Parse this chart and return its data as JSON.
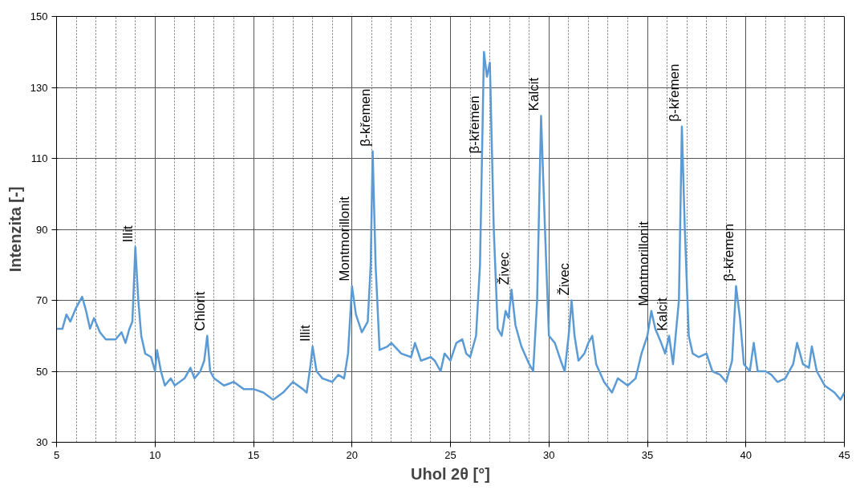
{
  "chart_data": {
    "type": "line",
    "xlabel": "Uhol 2θ [°]",
    "ylabel": "Intenzita [-]",
    "xlim": [
      5,
      45
    ],
    "ylim": [
      30,
      150
    ],
    "xticks": [
      5,
      {
        "value": 6,
        "label": null
      },
      {
        "value": 7,
        "label": null
      },
      {
        "value": 8,
        "label": null
      },
      {
        "value": 9,
        "label": null
      },
      10,
      {
        "value": 11,
        "label": null
      },
      {
        "value": 12,
        "label": null
      },
      {
        "value": 13,
        "label": null
      },
      {
        "value": 14,
        "label": null
      },
      15,
      {
        "value": 16,
        "label": null
      },
      {
        "value": 17,
        "label": null
      },
      {
        "value": 18,
        "label": null
      },
      {
        "value": 19,
        "label": null
      },
      20,
      {
        "value": 21,
        "label": null
      },
      {
        "value": 22,
        "label": null
      },
      {
        "value": 23,
        "label": null
      },
      {
        "value": 24,
        "label": null
      },
      25,
      {
        "value": 26,
        "label": null
      },
      {
        "value": 27,
        "label": null
      },
      {
        "value": 28,
        "label": null
      },
      {
        "value": 29,
        "label": null
      },
      30,
      {
        "value": 31,
        "label": null
      },
      {
        "value": 32,
        "label": null
      },
      {
        "value": 33,
        "label": null
      },
      {
        "value": 34,
        "label": null
      },
      35,
      {
        "value": 36,
        "label": null
      },
      {
        "value": 37,
        "label": null
      },
      {
        "value": 38,
        "label": null
      },
      {
        "value": 39,
        "label": null
      },
      40,
      {
        "value": 41,
        "label": null
      },
      {
        "value": 42,
        "label": null
      },
      {
        "value": 43,
        "label": null
      },
      {
        "value": 44,
        "label": null
      },
      45
    ],
    "yticks": [
      30,
      50,
      70,
      90,
      110,
      130,
      150
    ],
    "grid": true,
    "marker": "none",
    "line_style": "solid",
    "series": [
      {
        "color": "#5b9bd5",
        "x": [
          5,
          5.3,
          5.5,
          5.7,
          6.0,
          6.3,
          6.5,
          6.7,
          6.9,
          7.2,
          7.5,
          8.0,
          8.3,
          8.5,
          8.7,
          8.85,
          9.0,
          9.15,
          9.3,
          9.5,
          9.8,
          10.0,
          10.1,
          10.3,
          10.5,
          10.8,
          11.0,
          11.5,
          11.8,
          12.0,
          12.3,
          12.5,
          12.65,
          12.8,
          13.0,
          13.5,
          14,
          14.5,
          15,
          15.5,
          16,
          16.5,
          17,
          17.5,
          17.7,
          17.9,
          18.0,
          18.2,
          18.5,
          19,
          19.3,
          19.6,
          19.8,
          20.0,
          20.2,
          20.5,
          20.8,
          20.95,
          21.05,
          21.2,
          21.4,
          21.8,
          22,
          22.5,
          23.0,
          23.2,
          23.5,
          24,
          24.2,
          24.5,
          24.7,
          25,
          25.3,
          25.6,
          25.8,
          26.0,
          26.3,
          26.5,
          26.7,
          26.85,
          27.0,
          27.2,
          27.4,
          27.6,
          27.8,
          27.95,
          28.1,
          28.3,
          28.6,
          29.0,
          29.2,
          29.4,
          29.6,
          29.8,
          30.0,
          30.3,
          30.6,
          30.8,
          31.0,
          31.15,
          31.3,
          31.5,
          31.8,
          32.0,
          32.2,
          32.4,
          32.8,
          33.2,
          33.5,
          34.0,
          34.4,
          34.7,
          35.0,
          35.2,
          35.4,
          35.7,
          35.9,
          36.1,
          36.3,
          36.6,
          36.75,
          36.9,
          37.1,
          37.3,
          37.6,
          38.0,
          38.3,
          38.7,
          39.0,
          39.3,
          39.5,
          39.7,
          39.9,
          40.2,
          40.4,
          40.6,
          41.0,
          41.3,
          41.6,
          42.0,
          42.4,
          42.6,
          42.9,
          43.2,
          43.35,
          43.6,
          44.0,
          44.5,
          44.8,
          45
        ],
        "values": [
          62,
          62,
          66,
          64,
          68,
          71,
          67,
          62,
          65,
          61,
          59,
          59,
          61,
          58,
          62,
          64,
          85,
          70,
          60,
          55,
          54,
          50,
          56,
          50,
          46,
          48,
          46,
          48,
          51,
          48,
          50,
          53,
          60,
          50,
          48,
          46,
          47,
          45,
          45,
          44,
          42,
          44,
          47,
          45,
          44,
          52,
          57,
          50,
          48,
          47,
          49,
          48,
          55,
          74,
          66,
          61,
          64,
          80,
          112,
          80,
          56,
          57,
          58,
          55,
          54,
          58,
          53,
          54,
          53,
          50,
          55,
          53,
          58,
          59,
          55,
          54,
          60,
          80,
          140,
          133,
          137,
          90,
          62,
          60,
          67,
          65,
          73,
          63,
          57,
          52,
          50,
          70,
          122,
          90,
          60,
          58,
          53,
          50,
          60,
          70,
          60,
          53,
          55,
          58,
          60,
          52,
          47,
          44,
          48,
          46,
          48,
          55,
          60,
          67,
          62,
          58,
          55,
          60,
          52,
          70,
          119,
          90,
          60,
          55,
          54,
          55,
          50,
          49,
          47,
          53,
          74,
          65,
          52,
          50,
          58,
          50,
          50,
          49,
          47,
          48,
          52,
          58,
          52,
          51,
          57,
          50,
          46,
          44,
          42,
          44
        ]
      }
    ],
    "annotations": [
      {
        "text": "Illit",
        "x": 9.0,
        "y": 85
      },
      {
        "text": "Chlorit",
        "x": 12.65,
        "y": 60
      },
      {
        "text": "Illit",
        "x": 18.0,
        "y": 57
      },
      {
        "text": "Montmorillonit",
        "x": 20.0,
        "y": 74
      },
      {
        "text": "β-křemen",
        "x": 21.05,
        "y": 112
      },
      {
        "text": "β-křemen",
        "x": 26.6,
        "y": 110
      },
      {
        "text": "Živec",
        "x": 28.1,
        "y": 73
      },
      {
        "text": "Kalcit",
        "x": 29.6,
        "y": 122
      },
      {
        "text": "Živec",
        "x": 31.15,
        "y": 70
      },
      {
        "text": "Montmorillonit",
        "x": 35.2,
        "y": 67
      },
      {
        "text": "Kalcit",
        "x": 36.1,
        "y": 60
      },
      {
        "text": "β-křemen",
        "x": 36.75,
        "y": 119
      },
      {
        "text": "β-křemen",
        "x": 39.5,
        "y": 74
      }
    ]
  }
}
